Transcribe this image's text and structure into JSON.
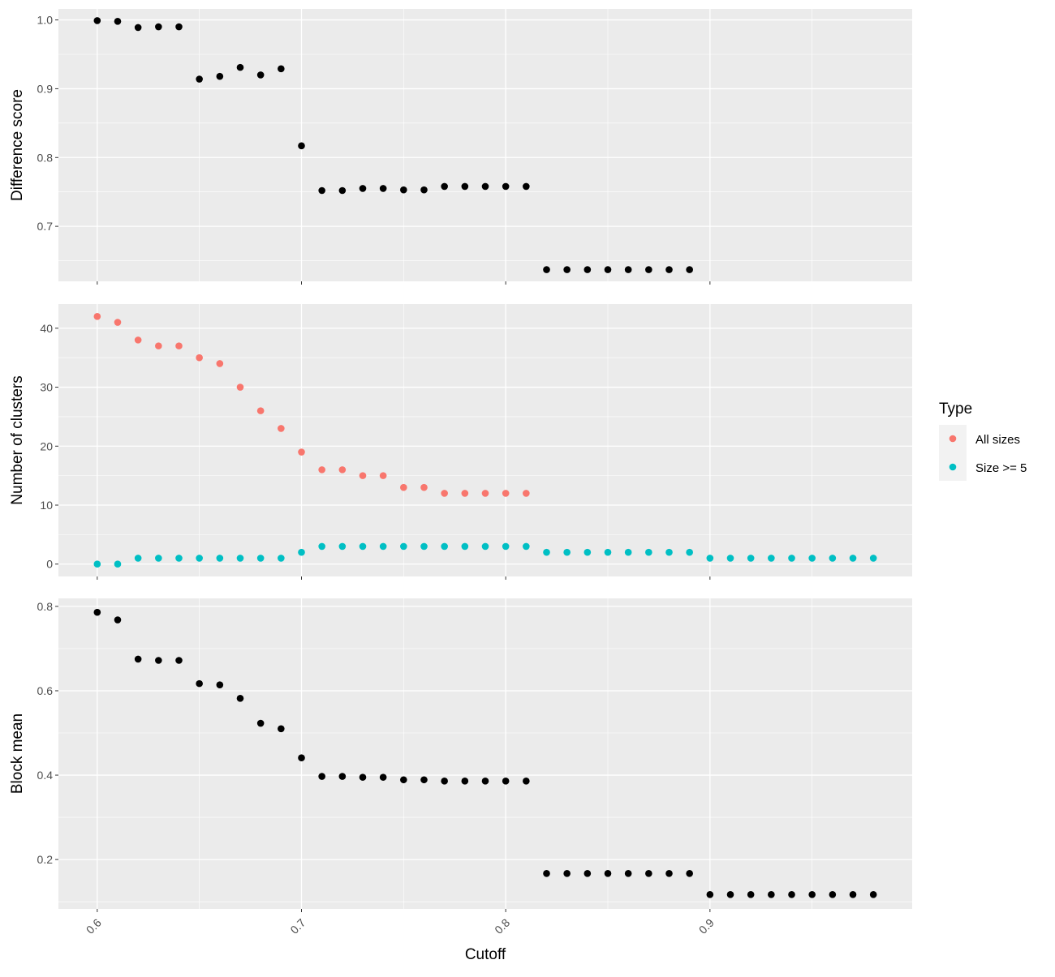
{
  "colors": {
    "panel_bg": "#EBEBEB",
    "grid": "#FFFFFF",
    "tick": "#333333",
    "text": "#4D4D4D",
    "black_points": "#000000",
    "all_sizes": "#F8766D",
    "size_ge_5": "#00BFC4"
  },
  "chart_data": [
    {
      "type": "scatter",
      "title": "",
      "xlabel": "",
      "ylabel": "Difference score",
      "xlim": [
        0.581,
        0.999
      ],
      "ylim": [
        0.62,
        1.016
      ],
      "yticks": [
        0.7,
        0.8,
        0.9,
        1.0
      ],
      "ytick_labels": [
        "0.7",
        "0.8",
        "0.9",
        "1.0"
      ],
      "series": [
        {
          "color": "#000000",
          "x": [
            0.6,
            0.61,
            0.62,
            0.63,
            0.64,
            0.65,
            0.66,
            0.67,
            0.68,
            0.69,
            0.7,
            0.71,
            0.72,
            0.73,
            0.74,
            0.75,
            0.76,
            0.77,
            0.78,
            0.79,
            0.8,
            0.81,
            0.82,
            0.83,
            0.84,
            0.85,
            0.86,
            0.87,
            0.88,
            0.89
          ],
          "y": [
            0.999,
            0.998,
            0.989,
            0.99,
            0.99,
            0.914,
            0.918,
            0.931,
            0.92,
            0.929,
            0.817,
            0.752,
            0.752,
            0.755,
            0.755,
            0.753,
            0.753,
            0.758,
            0.758,
            0.758,
            0.758,
            0.758,
            0.637,
            0.637,
            0.637,
            0.637,
            0.637,
            0.637,
            0.637,
            0.637
          ]
        }
      ]
    },
    {
      "type": "scatter",
      "title": "",
      "xlabel": "",
      "ylabel": "Number of clusters",
      "xlim": [
        0.581,
        0.999
      ],
      "ylim": [
        -2.1,
        44.1
      ],
      "yticks": [
        0,
        10,
        20,
        30,
        40
      ],
      "ytick_labels": [
        "0",
        "10",
        "20",
        "30",
        "40"
      ],
      "legend": {
        "title": "Type",
        "position": "right"
      },
      "series": [
        {
          "name": "All sizes",
          "color": "#F8766D",
          "x": [
            0.6,
            0.61,
            0.62,
            0.63,
            0.64,
            0.65,
            0.66,
            0.67,
            0.68,
            0.69,
            0.7,
            0.71,
            0.72,
            0.73,
            0.74,
            0.75,
            0.76,
            0.77,
            0.78,
            0.79,
            0.8,
            0.81
          ],
          "y": [
            42,
            41,
            38,
            37,
            37,
            35,
            34,
            30,
            26,
            23,
            19,
            16,
            16,
            15,
            15,
            13,
            13,
            12,
            12,
            12,
            12,
            12
          ]
        },
        {
          "name": "Size >= 5",
          "color": "#00BFC4",
          "x": [
            0.6,
            0.61,
            0.62,
            0.63,
            0.64,
            0.65,
            0.66,
            0.67,
            0.68,
            0.69,
            0.7,
            0.71,
            0.72,
            0.73,
            0.74,
            0.75,
            0.76,
            0.77,
            0.78,
            0.79,
            0.8,
            0.81,
            0.82,
            0.83,
            0.84,
            0.85,
            0.86,
            0.87,
            0.88,
            0.89,
            0.9,
            0.91,
            0.92,
            0.93,
            0.94,
            0.95,
            0.96,
            0.97,
            0.98
          ],
          "y": [
            0,
            0,
            1,
            1,
            1,
            1,
            1,
            1,
            1,
            1,
            2,
            3,
            3,
            3,
            3,
            3,
            3,
            3,
            3,
            3,
            3,
            3,
            2,
            2,
            2,
            2,
            2,
            2,
            2,
            2,
            1,
            1,
            1,
            1,
            1,
            1,
            1,
            1,
            1
          ]
        }
      ]
    },
    {
      "type": "scatter",
      "title": "",
      "xlabel": "Cutoff",
      "ylabel": "Block mean",
      "xlim": [
        0.581,
        0.999
      ],
      "ylim": [
        0.083,
        0.819
      ],
      "yticks": [
        0.2,
        0.4,
        0.6,
        0.8
      ],
      "ytick_labels": [
        "0.2",
        "0.4",
        "0.6",
        "0.8"
      ],
      "xticks": [
        0.6,
        0.7,
        0.8,
        0.9
      ],
      "xtick_labels": [
        "0.6",
        "0.7",
        "0.8",
        "0.9"
      ],
      "series": [
        {
          "color": "#000000",
          "x": [
            0.6,
            0.61,
            0.62,
            0.63,
            0.64,
            0.65,
            0.66,
            0.67,
            0.68,
            0.69,
            0.7,
            0.71,
            0.72,
            0.73,
            0.74,
            0.75,
            0.76,
            0.77,
            0.78,
            0.79,
            0.8,
            0.81,
            0.82,
            0.83,
            0.84,
            0.85,
            0.86,
            0.87,
            0.88,
            0.89,
            0.9,
            0.91,
            0.92,
            0.93,
            0.94,
            0.95,
            0.96,
            0.97,
            0.98
          ],
          "y": [
            0.786,
            0.768,
            0.675,
            0.672,
            0.672,
            0.617,
            0.614,
            0.582,
            0.523,
            0.51,
            0.441,
            0.397,
            0.397,
            0.395,
            0.395,
            0.389,
            0.389,
            0.386,
            0.386,
            0.386,
            0.386,
            0.386,
            0.167,
            0.167,
            0.167,
            0.167,
            0.167,
            0.167,
            0.167,
            0.167,
            0.117,
            0.117,
            0.117,
            0.117,
            0.117,
            0.117,
            0.117,
            0.117,
            0.117
          ]
        }
      ]
    }
  ]
}
